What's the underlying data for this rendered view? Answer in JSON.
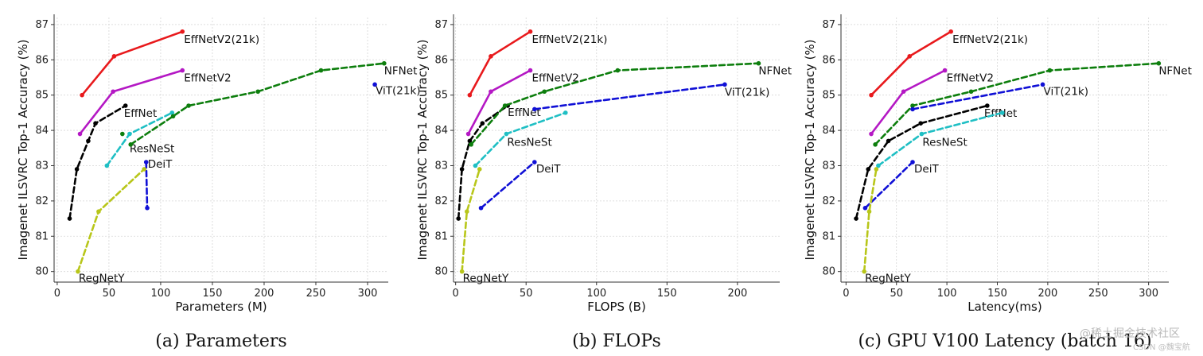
{
  "chart_data": [
    {
      "type": "line",
      "xlabel": "Parameters (M)",
      "ylabel": "Imagenet ILSVRC Top-1 Accuracy (%)",
      "xlim": [
        -3,
        320
      ],
      "ylim": [
        79.7,
        87.2
      ],
      "xticks": [
        0,
        50,
        100,
        150,
        200,
        250,
        300
      ],
      "yticks": [
        80,
        81,
        82,
        83,
        84,
        85,
        86,
        87
      ],
      "caption": "(a) Parameters",
      "grid": true,
      "series": [
        {
          "name": "EffNetV2(21k)",
          "color": "#e8191c",
          "dashed": false,
          "points": [
            [
              24,
              85.0
            ],
            [
              55,
              86.1
            ],
            [
              121,
              86.8
            ]
          ],
          "label_at": "end",
          "label_dx": 2,
          "label_dy": 14
        },
        {
          "name": "EffNetV2",
          "color": "#b418c4",
          "dashed": false,
          "points": [
            [
              22,
              83.9
            ],
            [
              54,
              85.1
            ],
            [
              121,
              85.7
            ]
          ],
          "label_at": "end",
          "label_dx": 2,
          "label_dy": 14
        },
        {
          "name": "EffNet",
          "color": "#000000",
          "dashed": true,
          "points": [
            [
              12,
              81.5
            ],
            [
              19,
              82.9
            ],
            [
              30,
              83.7
            ],
            [
              37,
              84.2
            ],
            [
              66,
              84.7
            ]
          ],
          "label_at": "end",
          "label_dx": -2,
          "label_dy": 14
        },
        {
          "name": "ResNeSt",
          "color": "#1fbfc4",
          "dashed": true,
          "points": [
            [
              48,
              83.0
            ],
            [
              70,
              83.9
            ],
            [
              111,
              84.5
            ]
          ],
          "label_at": "i1",
          "label_dx": 0,
          "label_dy": 23
        },
        {
          "name": "NFNet",
          "color": "#0d7e0d",
          "dashed": true,
          "points": [
            [
              71,
              83.6
            ],
            [
              112,
              84.4
            ],
            [
              127,
              84.7
            ],
            [
              194,
              85.1
            ],
            [
              255,
              85.7
            ],
            [
              316,
              85.9
            ]
          ],
          "label_at": "end",
          "label_dx": 0,
          "label_dy": 14
        },
        {
          "name": "ViT(21k)",
          "color": "#1010d6",
          "dashed": true,
          "points": [
            [
              307,
              85.3
            ]
          ],
          "label_at": "end",
          "label_dx": 1,
          "label_dy": 12
        },
        {
          "name": "DeiT",
          "color": "#1010d6",
          "dashed": true,
          "points": [
            [
              86,
              83.1
            ],
            [
              87,
              81.8
            ]
          ],
          "label_at": "i0",
          "label_dx": 2,
          "label_dy": 7
        },
        {
          "name": "RegNetY",
          "color": "#b8c61a",
          "dashed": true,
          "points": [
            [
              20,
              80.0
            ],
            [
              40,
              81.7
            ],
            [
              84,
              82.9
            ]
          ],
          "label_at": "i0",
          "label_dx": 1,
          "label_dy": 13
        }
      ],
      "extra_points": [
        {
          "color": "#0d7e0d",
          "point": [
            63,
            83.9
          ]
        }
      ]
    },
    {
      "type": "line",
      "xlabel": "FLOPS (B)",
      "ylabel": "Imagenet ILSVRC Top-1 Accuracy (%)",
      "xlim": [
        -1.5,
        230
      ],
      "ylim": [
        79.7,
        87.2
      ],
      "xticks": [
        0,
        50,
        100,
        150,
        200
      ],
      "yticks": [
        80,
        81,
        82,
        83,
        84,
        85,
        86,
        87
      ],
      "caption": "(b) FLOPs",
      "grid": true,
      "series": [
        {
          "name": "EffNetV2(21k)",
          "color": "#e8191c",
          "dashed": false,
          "points": [
            [
              10,
              85.0
            ],
            [
              25,
              86.1
            ],
            [
              53,
              86.8
            ]
          ],
          "label_at": "end",
          "label_dx": 2,
          "label_dy": 14
        },
        {
          "name": "EffNetV2",
          "color": "#b418c4",
          "dashed": false,
          "points": [
            [
              9,
              83.9
            ],
            [
              25,
              85.1
            ],
            [
              53,
              85.7
            ]
          ],
          "label_at": "end",
          "label_dx": 2,
          "label_dy": 14
        },
        {
          "name": "EffNet",
          "color": "#000000",
          "dashed": true,
          "points": [
            [
              2,
              81.5
            ],
            [
              4.5,
              82.9
            ],
            [
              10,
              83.7
            ],
            [
              19,
              84.2
            ],
            [
              37,
              84.7
            ]
          ],
          "label_at": "end",
          "label_dx": 0,
          "label_dy": 13
        },
        {
          "name": "ResNeSt",
          "color": "#1fbfc4",
          "dashed": true,
          "points": [
            [
              14,
              83.0
            ],
            [
              36,
              83.9
            ],
            [
              78,
              84.5
            ]
          ],
          "label_at": "i1",
          "label_dx": 1,
          "label_dy": 15
        },
        {
          "name": "NFNet",
          "color": "#0d7e0d",
          "dashed": true,
          "points": [
            [
              11,
              83.6
            ],
            [
              35,
              84.7
            ],
            [
              63,
              85.1
            ],
            [
              115,
              85.7
            ],
            [
              215,
              85.9
            ]
          ],
          "label_at": "end",
          "label_dx": 0,
          "label_dy": 14
        },
        {
          "name": "ViT(21k)",
          "color": "#1010d6",
          "dashed": true,
          "points": [
            [
              56,
              84.6
            ],
            [
              191,
              85.3
            ]
          ],
          "label_at": "end",
          "label_dx": 0,
          "label_dy": 14
        },
        {
          "name": "DeiT",
          "color": "#1010d6",
          "dashed": true,
          "points": [
            [
              18,
              81.8
            ],
            [
              56,
              83.1
            ]
          ],
          "label_at": "end",
          "label_dx": 2,
          "label_dy": 13
        },
        {
          "name": "RegNetY",
          "color": "#b8c61a",
          "dashed": true,
          "points": [
            [
              4.5,
              80.0
            ],
            [
              8,
              81.7
            ],
            [
              17,
              82.9
            ]
          ],
          "label_at": "i0",
          "label_dx": 1,
          "label_dy": 13
        }
      ],
      "extra_points": []
    },
    {
      "type": "line",
      "xlabel": "Latency(ms)",
      "ylabel": "Imagenet ILSVRC Top-1 Accuracy (%)",
      "xlim": [
        -5,
        320
      ],
      "ylim": [
        79.7,
        87.2
      ],
      "xticks": [
        0,
        50,
        100,
        150,
        200,
        250,
        300
      ],
      "yticks": [
        80,
        81,
        82,
        83,
        84,
        85,
        86,
        87
      ],
      "caption": "(c) GPU V100 Latency (batch 16)",
      "grid": true,
      "series": [
        {
          "name": "EffNetV2(21k)",
          "color": "#e8191c",
          "dashed": false,
          "points": [
            [
              25,
              85.0
            ],
            [
              63,
              86.1
            ],
            [
              104,
              86.8
            ]
          ],
          "label_at": "end",
          "label_dx": 2,
          "label_dy": 14
        },
        {
          "name": "EffNetV2",
          "color": "#b418c4",
          "dashed": false,
          "points": [
            [
              25,
              83.9
            ],
            [
              57,
              85.1
            ],
            [
              98,
              85.7
            ]
          ],
          "label_at": "end",
          "label_dx": 2,
          "label_dy": 14
        },
        {
          "name": "EffNet",
          "color": "#000000",
          "dashed": true,
          "points": [
            [
              10,
              81.5
            ],
            [
              22,
              82.9
            ],
            [
              42,
              83.7
            ],
            [
              74,
              84.2
            ],
            [
              140,
              84.7
            ]
          ],
          "label_at": "end",
          "label_dx": -4,
          "label_dy": 14
        },
        {
          "name": "ResNeSt",
          "color": "#1fbfc4",
          "dashed": true,
          "points": [
            [
              32,
              83.0
            ],
            [
              75,
              83.9
            ],
            [
              155,
              84.5
            ]
          ],
          "label_at": "i1",
          "label_dx": 1,
          "label_dy": 15
        },
        {
          "name": "NFNet",
          "color": "#0d7e0d",
          "dashed": true,
          "points": [
            [
              29,
              83.6
            ],
            [
              66,
              84.7
            ],
            [
              124,
              85.1
            ],
            [
              202,
              85.7
            ],
            [
              310,
              85.9
            ]
          ],
          "label_at": "end",
          "label_dx": 0,
          "label_dy": 14
        },
        {
          "name": "ViT(21k)",
          "color": "#1010d6",
          "dashed": true,
          "points": [
            [
              66,
              84.6
            ],
            [
              195,
              85.3
            ]
          ],
          "label_at": "end",
          "label_dx": 1,
          "label_dy": 13
        },
        {
          "name": "DeiT",
          "color": "#1010d6",
          "dashed": true,
          "points": [
            [
              19,
              81.8
            ],
            [
              66,
              83.1
            ]
          ],
          "label_at": "end",
          "label_dx": 2,
          "label_dy": 13
        },
        {
          "name": "RegNetY",
          "color": "#b8c61a",
          "dashed": true,
          "points": [
            [
              18,
              80.0
            ],
            [
              23,
              81.7
            ],
            [
              30,
              82.9
            ]
          ],
          "label_at": "i0",
          "label_dx": 1,
          "label_dy": 13
        }
      ],
      "extra_points": []
    }
  ],
  "watermark": {
    "text": "@稀土掘金技术社区",
    "small": "CSDN @魏宝航"
  }
}
